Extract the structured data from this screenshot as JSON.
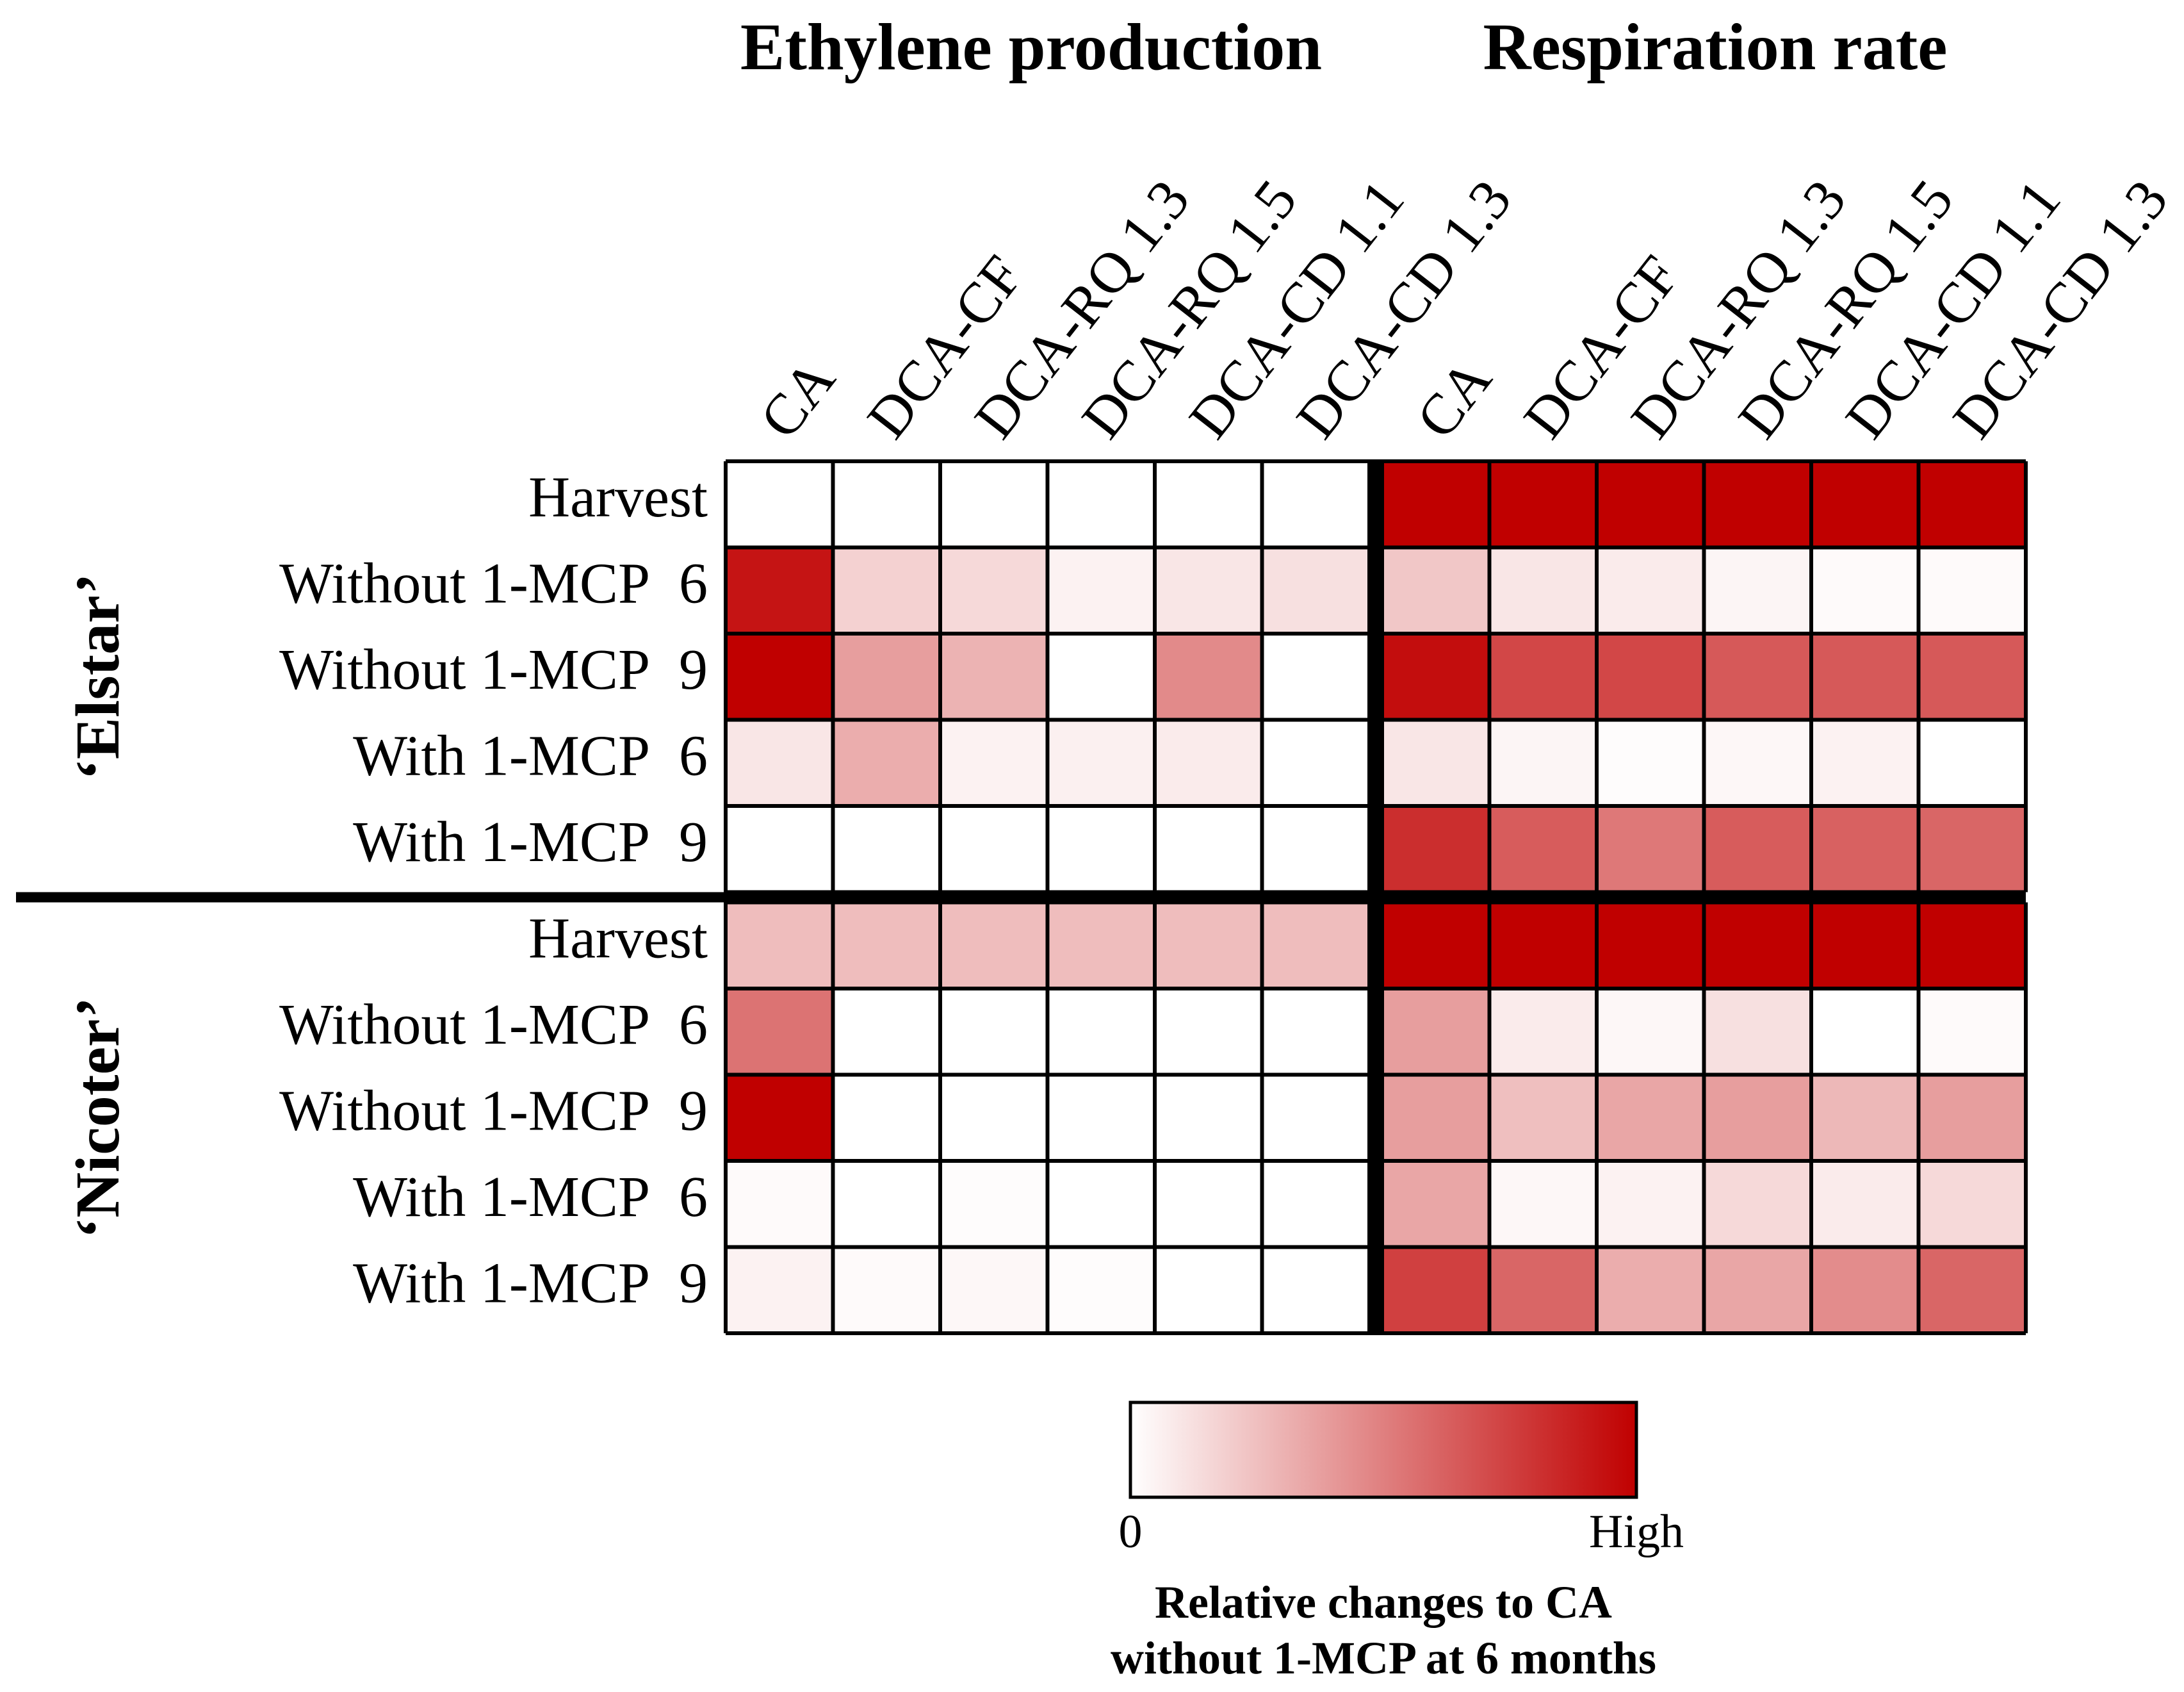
{
  "chart_data": {
    "type": "heatmap",
    "panel_titles": [
      "Ethylene production",
      "Respiration rate"
    ],
    "columns": [
      "CA",
      "DCA-CF",
      "DCA-RQ 1.3",
      "DCA-RQ 1.5",
      "DCA-CD 1.1",
      "DCA-CD 1.3"
    ],
    "groups": [
      {
        "name": "‘Elstar’",
        "rows": [
          {
            "label": "Harvest",
            "month": "",
            "ethylene": [
              0,
              0,
              0,
              0,
              0,
              0
            ],
            "respiration": [
              1.0,
              1.0,
              1.0,
              1.0,
              1.0,
              1.0
            ]
          },
          {
            "label": "Without 1-MCP",
            "month": "6",
            "ethylene": [
              0.92,
              0.18,
              0.15,
              0.05,
              0.1,
              0.12
            ],
            "respiration": [
              0.22,
              0.1,
              0.08,
              0.04,
              0.02,
              0.02
            ]
          },
          {
            "label": "Without 1-MCP",
            "month": "9",
            "ethylene": [
              1.0,
              0.38,
              0.3,
              0.0,
              0.46,
              0.0
            ],
            "respiration": [
              0.95,
              0.72,
              0.72,
              0.65,
              0.65,
              0.65
            ]
          },
          {
            "label": "With 1-MCP",
            "month": "6",
            "ethylene": [
              0.1,
              0.32,
              0.05,
              0.06,
              0.08,
              0.0
            ],
            "respiration": [
              0.1,
              0.04,
              0.01,
              0.03,
              0.05,
              0.0
            ]
          },
          {
            "label": "With 1-MCP",
            "month": "9",
            "ethylene": [
              0,
              0,
              0,
              0,
              0,
              0
            ],
            "respiration": [
              0.82,
              0.64,
              0.53,
              0.64,
              0.62,
              0.6
            ]
          }
        ]
      },
      {
        "name": "‘Nicoter’",
        "rows": [
          {
            "label": "Harvest",
            "month": "",
            "ethylene": [
              0.26,
              0.26,
              0.26,
              0.26,
              0.26,
              0.26
            ],
            "respiration": [
              1.0,
              1.0,
              1.0,
              1.0,
              1.0,
              1.0
            ]
          },
          {
            "label": "Without 1-MCP",
            "month": "6",
            "ethylene": [
              0.55,
              0,
              0,
              0,
              0,
              0
            ],
            "respiration": [
              0.38,
              0.08,
              0.03,
              0.12,
              0.0,
              0.02
            ]
          },
          {
            "label": "Without 1-MCP",
            "month": "9",
            "ethylene": [
              1.0,
              0,
              0,
              0,
              0,
              0
            ],
            "respiration": [
              0.38,
              0.25,
              0.35,
              0.38,
              0.28,
              0.38
            ]
          },
          {
            "label": "With 1-MCP",
            "month": "6",
            "ethylene": [
              0.02,
              0,
              0.01,
              0,
              0,
              0
            ],
            "respiration": [
              0.35,
              0.03,
              0.05,
              0.15,
              0.08,
              0.15
            ]
          },
          {
            "label": "With 1-MCP",
            "month": "9",
            "ethylene": [
              0.05,
              0.02,
              0.03,
              0.01,
              0,
              0
            ],
            "respiration": [
              0.75,
              0.6,
              0.32,
              0.35,
              0.45,
              0.6
            ]
          }
        ]
      }
    ],
    "colorbar": {
      "min_label": "0",
      "max_label": "High",
      "min_color": "#ffffff",
      "max_color": "#c00000",
      "title_line1": "Relative changes to CA",
      "title_line2": "without 1-MCP at 6 months"
    }
  }
}
